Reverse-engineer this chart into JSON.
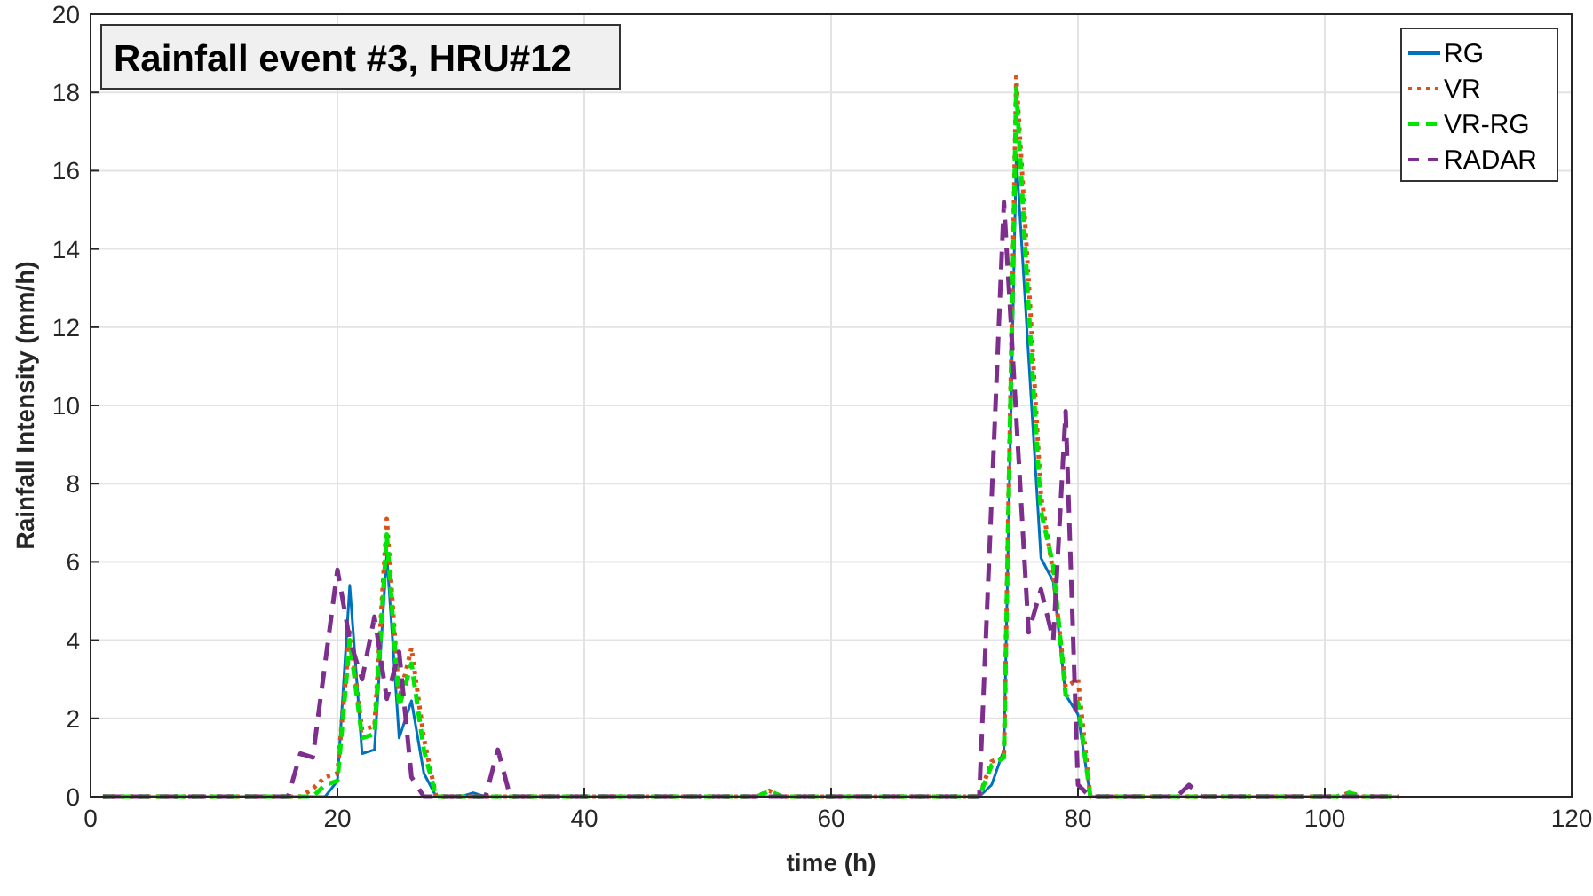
{
  "chart_data": {
    "type": "line",
    "title": "Rainfall event #3, HRU#12",
    "xlabel": "time (h)",
    "ylabel": "Rainfall Intensity (mm/h)",
    "xlim": [
      0,
      120
    ],
    "ylim": [
      0,
      20
    ],
    "xticks": [
      0,
      20,
      40,
      60,
      80,
      100,
      120
    ],
    "yticks": [
      0,
      2,
      4,
      6,
      8,
      10,
      12,
      14,
      16,
      18,
      20
    ],
    "grid": true,
    "legend": "top right",
    "series": [
      {
        "name": "RG",
        "color": "#0072bd",
        "line_style": "solid",
        "x": [
          1,
          19,
          20,
          21,
          22,
          23,
          24,
          25,
          26,
          27,
          28,
          30,
          31,
          32,
          72,
          73,
          74,
          75,
          77,
          78,
          79,
          80,
          81,
          106
        ],
        "values": [
          0,
          0,
          0.4,
          5.4,
          1.1,
          1.2,
          6.2,
          1.5,
          2.45,
          0.6,
          0,
          0,
          0.1,
          0,
          0,
          0.3,
          1.2,
          16.4,
          6.1,
          5.5,
          2.6,
          2.1,
          0,
          0
        ]
      },
      {
        "name": "VR",
        "color": "#d95319",
        "line_style": "dotted",
        "x": [
          1,
          17,
          18,
          19,
          20,
          21,
          22,
          23,
          24,
          25,
          26,
          27,
          28,
          54,
          55,
          56,
          72,
          73,
          74,
          75,
          76,
          77,
          78,
          79,
          80,
          81,
          101,
          102,
          103,
          106
        ],
        "values": [
          0,
          0,
          0.2,
          0.5,
          0.6,
          4.2,
          1.7,
          1.8,
          7.1,
          2.5,
          3.8,
          1.5,
          0,
          0,
          0.15,
          0,
          0,
          0.9,
          1,
          18.4,
          13.2,
          7.7,
          5.7,
          2.8,
          3,
          0,
          0,
          0.1,
          0,
          0
        ]
      },
      {
        "name": "VR-RG",
        "color": "#00e600",
        "line_style": "dashed",
        "x": [
          1,
          18,
          19,
          20,
          21,
          22,
          23,
          24,
          25,
          26,
          27,
          28,
          54,
          55,
          56,
          72,
          73,
          74,
          75,
          76,
          77,
          78,
          79,
          80,
          81,
          101,
          102,
          103,
          106
        ],
        "values": [
          0,
          0,
          0.3,
          0.4,
          4,
          1.5,
          1.6,
          6.7,
          2.3,
          3.4,
          1.2,
          0,
          0,
          0.15,
          0,
          0,
          0.8,
          1,
          18.1,
          12.5,
          7.3,
          5.9,
          2.6,
          2.4,
          0,
          0,
          0.1,
          0,
          0
        ]
      },
      {
        "name": "RADAR",
        "color": "#7e2f8e",
        "line_style": "dashed",
        "x": [
          1,
          16,
          17,
          18,
          20,
          21,
          22,
          23,
          24,
          25,
          26,
          27,
          32,
          33,
          34,
          72,
          74,
          76,
          77,
          78,
          79,
          80,
          81,
          88,
          89,
          90,
          106
        ],
        "values": [
          0,
          0,
          1.1,
          1,
          5.8,
          4,
          3,
          4.6,
          2.5,
          3.7,
          0.5,
          0,
          0,
          1.2,
          0,
          0,
          15.2,
          4.2,
          5.3,
          4,
          9.85,
          0.3,
          0,
          0,
          0.3,
          0,
          0
        ]
      }
    ]
  }
}
